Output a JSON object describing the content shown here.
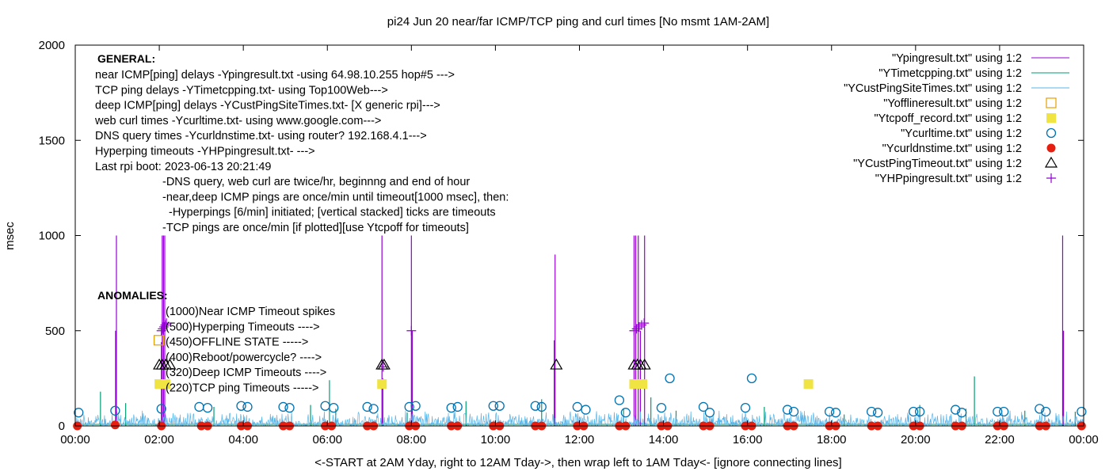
{
  "chart_data": {
    "type": "line",
    "title": "pi24 Jun 20  near/far ICMP/TCP ping and curl times [No msmt 1AM-2AM]",
    "xlabel": "<-START at 2AM Yday, right to 12AM Tday->, then wrap left to 1AM Tday<- [ignore connecting lines]",
    "ylabel": "msec",
    "xlim": [
      0,
      24
    ],
    "ylim": [
      0,
      2000
    ],
    "x_ticks": [
      "00:00",
      "02:00",
      "04:00",
      "06:00",
      "08:00",
      "10:00",
      "12:00",
      "14:00",
      "16:00",
      "18:00",
      "20:00",
      "22:00",
      "00:00"
    ],
    "y_ticks": [
      "0",
      "500",
      "1000",
      "1500",
      "2000"
    ],
    "grid": false,
    "legend_position": "top-right",
    "colors": {
      "ypingresult": "#9400d3",
      "ytimetcpping": "#009e73",
      "ycustpingsite": "#56b4e9",
      "yoffline": "#e69f00",
      "ytcpoff": "#f0e442",
      "ycurltime": "#0072b2",
      "ycurldns": "#e51e10",
      "ycustpingtimeout": "#000000",
      "yhppingresult": "#9400d3"
    },
    "series": [
      {
        "name": "\"Ypingresult.txt\" using 1:2",
        "style": "line",
        "color": "ypingresult",
        "spikes": [
          [
            0.98,
            1000
          ],
          [
            0.96,
            500
          ],
          [
            2.05,
            440
          ],
          [
            2.07,
            1000
          ],
          [
            2.1,
            1000
          ],
          [
            2.13,
            1000
          ],
          [
            7.3,
            1000
          ],
          [
            7.32,
            250
          ],
          [
            8.0,
            1000
          ],
          [
            8.02,
            500
          ],
          [
            11.42,
            900
          ],
          [
            11.4,
            450
          ],
          [
            13.3,
            1000
          ],
          [
            13.34,
            1000
          ],
          [
            13.4,
            1000
          ],
          [
            13.45,
            500
          ],
          [
            13.55,
            1000
          ],
          [
            23.5,
            1000
          ],
          [
            23.52,
            500
          ]
        ]
      },
      {
        "name": "\"YTimetcpping.txt\" using 1:2",
        "style": "line",
        "color": "ytimetcpping",
        "spikes": [
          [
            0.6,
            180
          ],
          [
            1.2,
            120
          ],
          [
            3.3,
            100
          ],
          [
            5.6,
            110
          ],
          [
            6.05,
            240
          ],
          [
            6.2,
            90
          ],
          [
            7.9,
            70
          ],
          [
            9.3,
            130
          ],
          [
            11.1,
            140
          ],
          [
            13.05,
            90
          ],
          [
            13.7,
            150
          ],
          [
            14.3,
            80
          ],
          [
            16.4,
            100
          ],
          [
            18.3,
            60
          ],
          [
            20.1,
            110
          ],
          [
            21.2,
            90
          ],
          [
            21.4,
            260
          ],
          [
            22.6,
            80
          ],
          [
            23.8,
            75
          ]
        ]
      },
      {
        "name": "\"YCustPingSiteTimes.txt\" using 1:2",
        "style": "line",
        "color": "ycustpingsite",
        "noise_level": [
          0,
          60
        ]
      },
      {
        "name": "\"Yofflineresult.txt\" using 1:2",
        "style": "open-square",
        "color": "yoffline",
        "points": [
          [
            1.99,
            450
          ]
        ]
      },
      {
        "name": "\"Ytcpoff_record.txt\" using 1:2",
        "style": "filled-square",
        "color": "ytcpoff",
        "points": [
          [
            2.0,
            220
          ],
          [
            2.15,
            220
          ],
          [
            7.3,
            220
          ],
          [
            13.3,
            220
          ],
          [
            13.5,
            220
          ],
          [
            17.45,
            220
          ]
        ]
      },
      {
        "name": "\"Ycurltime.txt\" using 1:2",
        "style": "open-circle",
        "color": "ycurltime",
        "points": [
          [
            0.08,
            70
          ],
          [
            0.95,
            80
          ],
          [
            2.05,
            90
          ],
          [
            2.95,
            100
          ],
          [
            3.15,
            95
          ],
          [
            3.95,
            105
          ],
          [
            4.1,
            100
          ],
          [
            4.95,
            100
          ],
          [
            5.1,
            95
          ],
          [
            5.95,
            105
          ],
          [
            6.15,
            95
          ],
          [
            6.95,
            100
          ],
          [
            7.1,
            90
          ],
          [
            7.95,
            100
          ],
          [
            8.1,
            105
          ],
          [
            8.95,
            95
          ],
          [
            9.1,
            100
          ],
          [
            9.95,
            105
          ],
          [
            10.1,
            105
          ],
          [
            10.95,
            105
          ],
          [
            11.1,
            100
          ],
          [
            11.95,
            100
          ],
          [
            12.15,
            85
          ],
          [
            12.95,
            135
          ],
          [
            13.1,
            70
          ],
          [
            13.95,
            95
          ],
          [
            14.15,
            250
          ],
          [
            14.95,
            100
          ],
          [
            15.1,
            70
          ],
          [
            15.95,
            95
          ],
          [
            16.1,
            250
          ],
          [
            16.95,
            85
          ],
          [
            17.1,
            75
          ],
          [
            17.95,
            75
          ],
          [
            18.1,
            70
          ],
          [
            18.95,
            75
          ],
          [
            19.1,
            70
          ],
          [
            19.95,
            75
          ],
          [
            20.1,
            75
          ],
          [
            20.95,
            85
          ],
          [
            21.1,
            70
          ],
          [
            21.95,
            75
          ],
          [
            22.1,
            75
          ],
          [
            22.95,
            90
          ],
          [
            23.1,
            75
          ],
          [
            23.95,
            75
          ]
        ]
      },
      {
        "name": "\"Ycurldnstime.txt\" using 1:2",
        "style": "filled-circle",
        "color": "ycurldns",
        "points": [
          [
            0.05,
            0
          ],
          [
            0.95,
            5
          ],
          [
            2.05,
            0
          ],
          [
            3.0,
            0
          ],
          [
            3.15,
            0
          ],
          [
            3.95,
            0
          ],
          [
            4.1,
            0
          ],
          [
            4.95,
            0
          ],
          [
            5.1,
            0
          ],
          [
            5.95,
            0
          ],
          [
            6.1,
            0
          ],
          [
            6.95,
            0
          ],
          [
            7.1,
            0
          ],
          [
            7.95,
            0
          ],
          [
            8.1,
            0
          ],
          [
            8.95,
            0
          ],
          [
            9.1,
            0
          ],
          [
            9.95,
            0
          ],
          [
            10.1,
            0
          ],
          [
            10.95,
            0
          ],
          [
            11.1,
            0
          ],
          [
            11.95,
            0
          ],
          [
            12.1,
            0
          ],
          [
            12.95,
            0
          ],
          [
            13.1,
            0
          ],
          [
            13.95,
            0
          ],
          [
            14.1,
            0
          ],
          [
            14.95,
            0
          ],
          [
            15.1,
            0
          ],
          [
            15.95,
            0
          ],
          [
            16.1,
            0
          ],
          [
            16.95,
            0
          ],
          [
            17.1,
            0
          ],
          [
            17.95,
            0
          ],
          [
            18.1,
            0
          ],
          [
            18.95,
            0
          ],
          [
            19.1,
            0
          ],
          [
            19.95,
            0
          ],
          [
            20.1,
            0
          ],
          [
            20.95,
            0
          ],
          [
            21.1,
            0
          ],
          [
            21.95,
            0
          ],
          [
            22.1,
            0
          ],
          [
            22.95,
            0
          ],
          [
            23.1,
            0
          ],
          [
            23.95,
            0
          ]
        ]
      },
      {
        "name": "\"YCustPingTimeout.txt\" using 1:2",
        "style": "open-triangle",
        "color": "ycustpingtimeout",
        "points": [
          [
            2.0,
            320
          ],
          [
            2.07,
            320
          ],
          [
            2.15,
            320
          ],
          [
            2.25,
            320
          ],
          [
            7.3,
            320
          ],
          [
            7.35,
            320
          ],
          [
            11.45,
            320
          ],
          [
            13.3,
            320
          ],
          [
            13.38,
            320
          ],
          [
            13.45,
            320
          ],
          [
            13.55,
            320
          ]
        ]
      },
      {
        "name": "\"YHPpingresult.txt\" using 1:2",
        "style": "plus",
        "color": "yhppingresult",
        "points": [
          [
            2.05,
            500
          ],
          [
            2.08,
            510
          ],
          [
            2.11,
            520
          ],
          [
            2.14,
            530
          ],
          [
            2.17,
            540
          ],
          [
            7.33,
            310
          ],
          [
            8.0,
            500
          ],
          [
            13.3,
            500
          ],
          [
            13.36,
            510
          ],
          [
            13.42,
            520
          ],
          [
            13.48,
            530
          ],
          [
            13.54,
            540
          ]
        ]
      }
    ],
    "annotations": {
      "general_header": "GENERAL:",
      "general_lines": [
        "near ICMP[ping] delays -Ypingresult.txt -using 64.98.10.255 hop#5 --->",
        "TCP ping delays -YTimetcpping.txt- using Top100Web--->",
        "deep ICMP[ping] delays -YCustPingSiteTimes.txt- [X generic rpi]--->",
        "web curl times -Ycurltime.txt- using www.google.com--->",
        "DNS query times -Ycurldnstime.txt- using router? 192.168.4.1--->",
        "Hyperping timeouts -YHPpingresult.txt- --->",
        "Last rpi boot: 2023-06-13 20:21:49"
      ],
      "general_notes": [
        "-DNS query, web curl are twice/hr, beginnng and end of hour",
        "-near,deep ICMP pings are once/min until timeout[1000 msec], then:",
        "-Hyperpings [6/min] initiated; [vertical stacked] ticks are timeouts",
        "-TCP pings are once/min [if plotted][use Ytcpoff for timeouts]"
      ],
      "anomalies_header": "ANOMALIES:",
      "anomalies_lines": [
        "(1000)Near ICMP Timeout spikes",
        "(500)Hyperping Timeouts ---->",
        "(450)OFFLINE STATE ----->",
        "(400)Reboot/powercycle? ---->",
        "(320)Deep ICMP Timeouts ---->",
        "(220)TCP ping Timeouts ----->"
      ]
    }
  }
}
